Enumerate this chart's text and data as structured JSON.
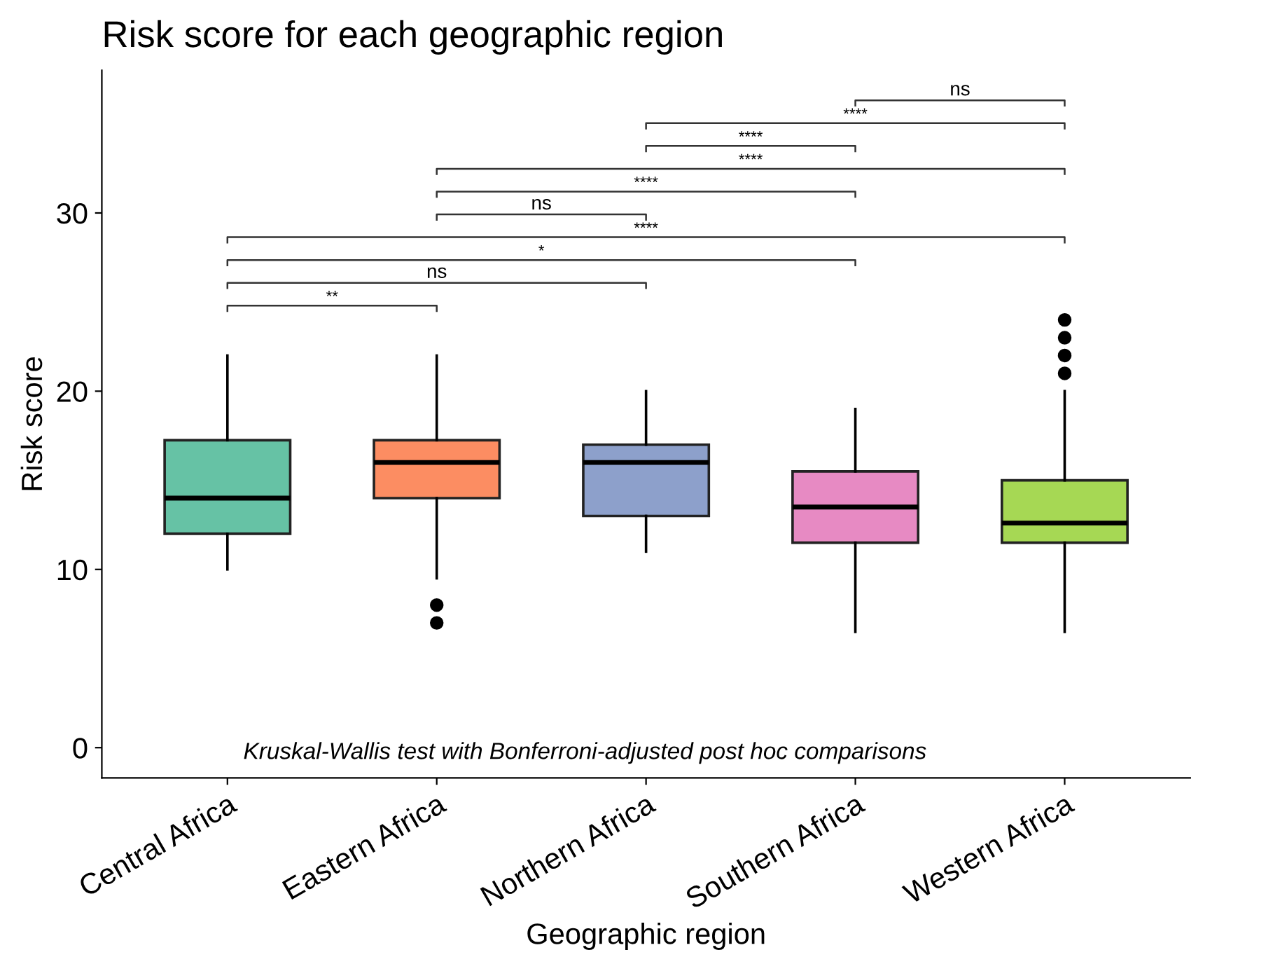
{
  "chart_data": {
    "type": "box",
    "title": "Risk score for each geographic region",
    "xlabel": "Geographic region",
    "ylabel": "Risk score",
    "categories": [
      "Central Africa",
      "Eastern Africa",
      "Northern Africa",
      "Southern Africa",
      "Western Africa"
    ],
    "colors": [
      "#66c2a5",
      "#fc8d62",
      "#8da0cb",
      "#e78ac3",
      "#a6d854"
    ],
    "boxes": [
      {
        "low": 10,
        "q1": 12,
        "median": 14,
        "q3": 17.25,
        "high": 22
      },
      {
        "low": 9.5,
        "q1": 14,
        "median": 16,
        "q3": 17.25,
        "high": 22,
        "outliers": [
          8,
          7
        ]
      },
      {
        "low": 11,
        "q1": 13,
        "median": 16,
        "q3": 17,
        "high": 20
      },
      {
        "low": 6.5,
        "q1": 11.5,
        "median": 13.5,
        "q3": 15.5,
        "high": 19
      },
      {
        "low": 6.5,
        "q1": 11.5,
        "median": 12.6,
        "q3": 15,
        "high": 20,
        "outliers": [
          21,
          22,
          23,
          24
        ]
      }
    ],
    "ylim": [
      -1.7,
      38
    ],
    "yticks": [
      0,
      10,
      20,
      30
    ],
    "grid": false,
    "annotations": [
      "**",
      "ns",
      "*",
      "****",
      "ns",
      "****",
      "****",
      "****",
      "****",
      "ns",
      "Kruskal-Wallis test with Bonferroni-adjusted post hoc comparisons"
    ]
  }
}
